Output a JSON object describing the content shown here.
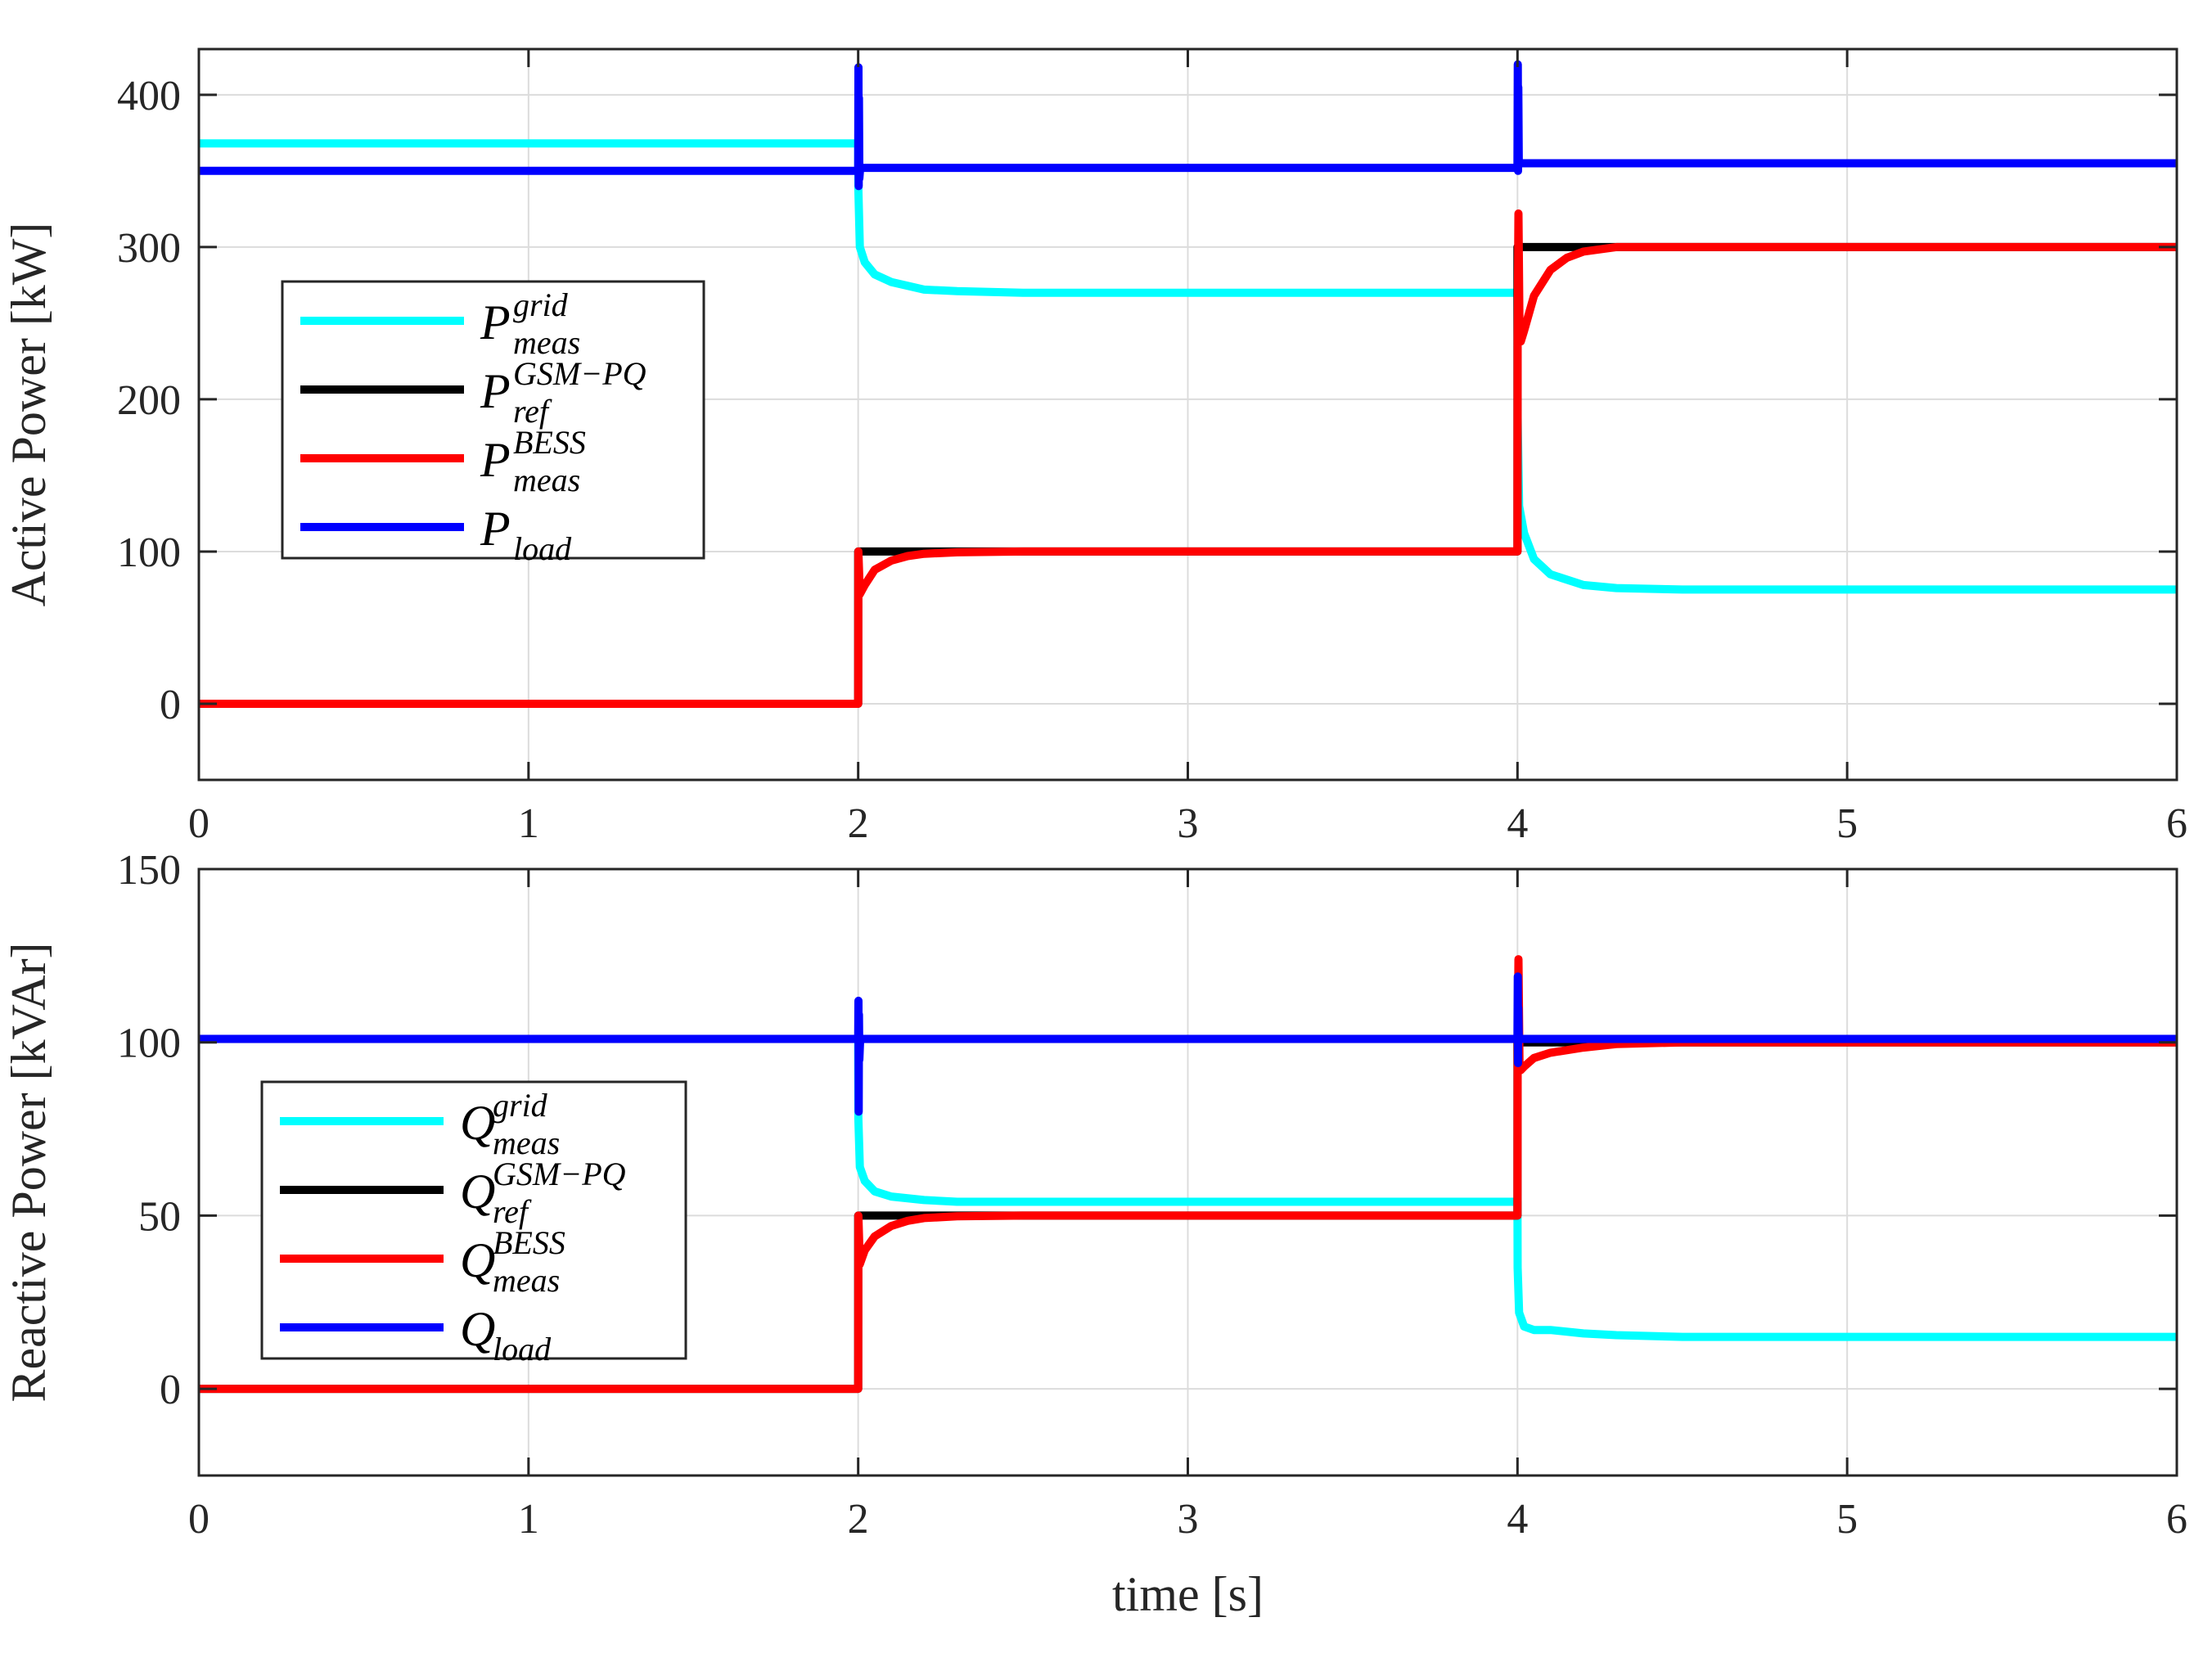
{
  "chart_data": [
    {
      "type": "line",
      "title": "",
      "xlabel": "",
      "ylabel": "Active Power [kW]",
      "xlim": [
        0,
        6
      ],
      "ylim": [
        -50,
        430
      ],
      "xticks": [
        0,
        1,
        2,
        3,
        4,
        5,
        6
      ],
      "yticks": [
        0,
        100,
        200,
        300,
        400
      ],
      "grid": true,
      "legend": "left",
      "series": [
        {
          "id": "p_grid",
          "legend": {
            "main": "P",
            "sup": "grid",
            "sub": "meas"
          },
          "color": "#00FFFF",
          "x": [
            0,
            2,
            2.0005,
            2.005,
            2.02,
            2.05,
            2.1,
            2.2,
            2.3,
            2.5,
            3,
            3.5,
            4,
            4.0005,
            4.005,
            4.02,
            4.05,
            4.1,
            4.2,
            4.3,
            4.5,
            5,
            6
          ],
          "y": [
            368,
            368,
            338,
            300,
            290,
            282,
            277,
            272,
            271,
            270,
            270,
            270,
            270,
            188,
            130,
            112,
            95,
            85,
            78,
            76,
            75,
            75,
            75
          ]
        },
        {
          "id": "p_ref",
          "legend": {
            "main": "P",
            "sup": "GSM−PQ",
            "sub": "ref"
          },
          "color": "#000000",
          "x": [
            0,
            2,
            2,
            4,
            4,
            6
          ],
          "y": [
            0,
            0,
            100,
            100,
            300,
            300
          ]
        },
        {
          "id": "p_bess",
          "legend": {
            "main": "P",
            "sup": "BESS",
            "sub": "meas"
          },
          "color": "#FF0000",
          "x": [
            0,
            2,
            2.0005,
            2.005,
            2.02,
            2.05,
            2.1,
            2.15,
            2.2,
            2.3,
            2.5,
            4,
            4.0005,
            4.003,
            4.006,
            4.01,
            4.02,
            4.05,
            4.1,
            4.15,
            4.2,
            4.3,
            4.5,
            6
          ],
          "y": [
            0,
            0,
            100,
            72,
            78,
            88,
            94,
            97,
            98.5,
            99.5,
            100,
            100,
            240,
            322,
            245,
            238,
            245,
            268,
            285,
            293,
            297,
            300,
            300,
            300
          ]
        },
        {
          "id": "p_load",
          "legend": {
            "main": "P",
            "sup": "",
            "sub": "load"
          },
          "color": "#0000FF",
          "x": [
            0,
            2,
            2.0008,
            2.0016,
            2.0024,
            2.0035,
            2.006,
            2.02,
            4,
            4.0008,
            4.0016,
            4.0024,
            4.004,
            4.01,
            6
          ],
          "y": [
            350,
            350,
            418,
            340,
            398,
            345,
            352,
            352,
            352,
            420,
            350,
            405,
            355,
            355,
            355
          ]
        }
      ]
    },
    {
      "type": "line",
      "title": "",
      "xlabel": "time [s]",
      "ylabel": "Reactive Power [kVAr]",
      "xlim": [
        0,
        6
      ],
      "ylim": [
        -25,
        150
      ],
      "xticks": [
        0,
        1,
        2,
        3,
        4,
        5,
        6
      ],
      "yticks": [
        0,
        50,
        100,
        150
      ],
      "grid": true,
      "legend": "left",
      "series": [
        {
          "id": "q_grid",
          "legend": {
            "main": "Q",
            "sup": "grid",
            "sub": "meas"
          },
          "color": "#00FFFF",
          "x": [
            0,
            2,
            2.0005,
            2.005,
            2.02,
            2.05,
            2.1,
            2.2,
            2.3,
            2.5,
            3,
            4,
            4.0005,
            4.005,
            4.02,
            4.05,
            4.1,
            4.2,
            4.3,
            4.5,
            5,
            6
          ],
          "y": [
            101,
            101,
            78,
            64,
            60,
            57,
            55.5,
            54.5,
            54,
            54,
            54,
            54,
            35,
            22,
            18,
            17,
            17,
            16,
            15.5,
            15,
            15,
            15
          ]
        },
        {
          "id": "q_ref",
          "legend": {
            "main": "Q",
            "sup": "GSM−PQ",
            "sub": "ref"
          },
          "color": "#000000",
          "x": [
            0,
            2,
            2,
            4,
            4,
            6
          ],
          "y": [
            0,
            0,
            50,
            50,
            100,
            100
          ]
        },
        {
          "id": "q_bess",
          "legend": {
            "main": "Q",
            "sup": "BESS",
            "sub": "meas"
          },
          "color": "#FF0000",
          "x": [
            0,
            2,
            2.0005,
            2.005,
            2.02,
            2.05,
            2.1,
            2.15,
            2.2,
            2.3,
            2.5,
            4,
            4.0005,
            4.003,
            4.006,
            4.01,
            4.02,
            4.05,
            4.1,
            4.2,
            4.3,
            4.5,
            6
          ],
          "y": [
            0,
            0,
            50,
            36,
            40,
            44,
            47,
            48.5,
            49.3,
            49.8,
            50,
            50,
            92,
            124,
            93,
            92,
            93,
            95.5,
            97,
            98.5,
            99.5,
            100,
            100
          ]
        },
        {
          "id": "q_load",
          "legend": {
            "main": "Q",
            "sup": "",
            "sub": "load"
          },
          "color": "#0000FF",
          "x": [
            0,
            2,
            2.0008,
            2.0016,
            2.0024,
            2.0035,
            2.006,
            4,
            4.0008,
            4.0016,
            4.0024,
            4.004,
            6
          ],
          "y": [
            101,
            101,
            112,
            80,
            108,
            95,
            101,
            101,
            119,
            94,
            110,
            101,
            101
          ]
        }
      ]
    }
  ]
}
